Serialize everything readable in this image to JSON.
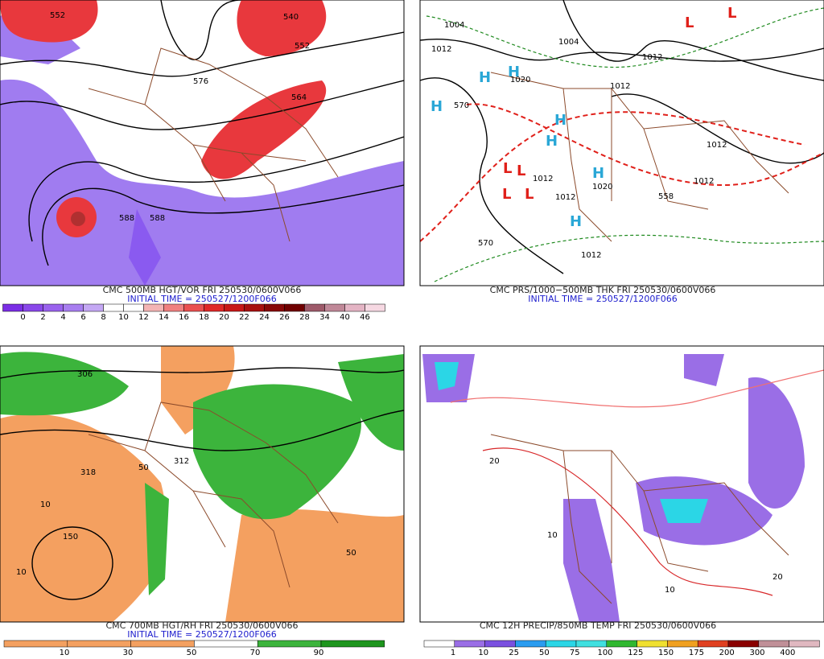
{
  "panels": [
    {
      "caption": "CMC 500MB HGT/VOR FRI 250530/0600V066",
      "initial_time": "INITIAL TIME = 250527/1200F066",
      "colorbar_labels": [
        0,
        2,
        4,
        6,
        8,
        10,
        12,
        14,
        16,
        18,
        20,
        22,
        24,
        26,
        28,
        34,
        40,
        46
      ],
      "map_labels": [
        "552",
        "540",
        "552",
        "576",
        "564",
        "588",
        "588"
      ]
    },
    {
      "caption": "CMC PRS/1000−500MB THK FRI 250530/0600V066",
      "initial_time": "INITIAL TIME = 250527/1200F066",
      "map_labels": [
        "1004",
        "1012",
        "1004",
        "1012",
        "1020",
        "1012",
        "1012",
        "1012",
        "1020",
        "1012",
        "1012",
        "1012",
        "570",
        "570",
        "558",
        "H",
        "H",
        "H",
        "H",
        "H",
        "H",
        "H",
        "L",
        "L",
        "L",
        "L",
        "L",
        "L"
      ]
    },
    {
      "caption": "CMC 700MB HGT/RH FRI 250530/0600V066",
      "initial_time": "INITIAL TIME = 250527/1200F066",
      "colorbar_labels": [
        10,
        30,
        50,
        70,
        90
      ],
      "map_labels": [
        "318",
        "150",
        "10",
        "10",
        "50",
        "50",
        "306",
        "312"
      ]
    },
    {
      "caption": "CMC 12H PRECIP/850MB TEMP FRI 250530/0600V066",
      "colorbar_labels": [
        1,
        10,
        25,
        50,
        75,
        100,
        125,
        150,
        175,
        200,
        300,
        400
      ],
      "map_labels": [
        "20",
        "10",
        "10",
        "20"
      ]
    }
  ]
}
